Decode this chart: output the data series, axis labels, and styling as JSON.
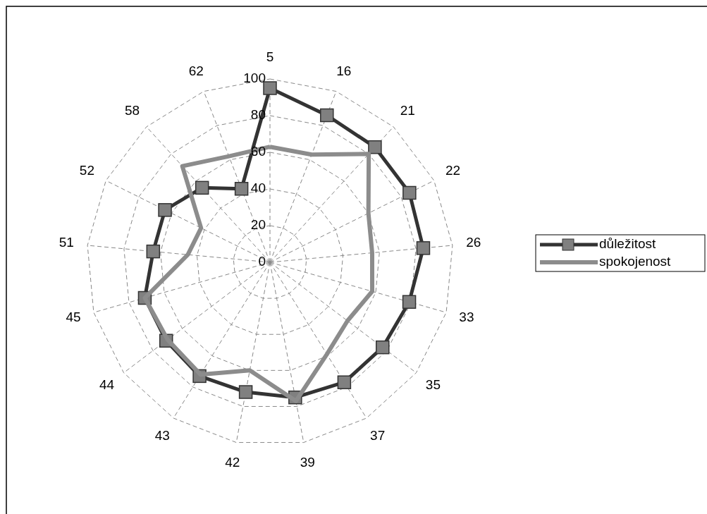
{
  "chart_data": {
    "type": "radar",
    "categories": [
      "5",
      "16",
      "21",
      "22",
      "26",
      "33",
      "35",
      "37",
      "39",
      "42",
      "43",
      "44",
      "45",
      "51",
      "52",
      "58",
      "62"
    ],
    "series": [
      {
        "name": "důležitost",
        "color": "#333333",
        "marker": "square",
        "values": [
          95,
          86,
          85,
          85,
          84,
          79,
          77,
          77,
          75,
          72,
          73,
          71,
          71,
          64,
          64,
          55,
          43
        ]
      },
      {
        "name": "spokojenost",
        "color": "#8c8c8c",
        "marker": "none",
        "values": [
          63,
          63,
          80,
          60,
          56,
          58,
          53,
          59,
          77,
          60,
          72,
          70,
          71,
          45,
          42,
          71,
          62
        ]
      }
    ],
    "ylim": [
      0,
      100
    ],
    "yticks": [
      0,
      20,
      40,
      60,
      80,
      100
    ],
    "grid": true,
    "legend": "right"
  }
}
